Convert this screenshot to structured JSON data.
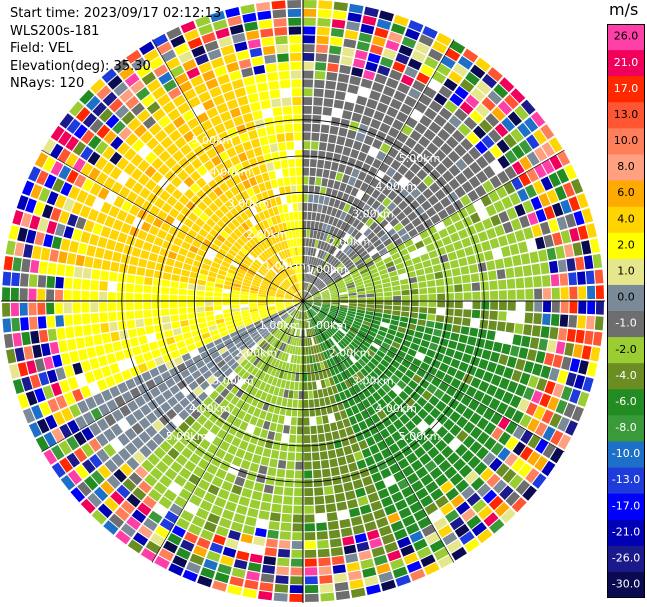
{
  "meta": {
    "start_time": "Start time: 2023/09/17 02:12:13",
    "device": "WLS200s-181",
    "field": "Field: VEL",
    "elevation": "Elevation(deg): 35.30",
    "nrays": "NRays: 120"
  },
  "chart_data": {
    "type": "heatmap",
    "projection": "polar-ppi",
    "field": "VEL",
    "units": "m/s",
    "n_rays": 120,
    "elevation_deg": 35.3,
    "max_range_km": 5.0,
    "range_rings_km": [
      1.0,
      2.0,
      3.0,
      4.0,
      5.0
    ],
    "range_ring_labels": [
      "1.00km",
      "2.00km",
      "3.00km",
      "4.00km",
      "5.00km"
    ],
    "colorbar": {
      "label": "m/s",
      "ticks": [
        "26.0",
        "21.0",
        "17.0",
        "13.0",
        "10.0",
        "8.0",
        "6.0",
        "4.0",
        "2.0",
        "1.0",
        "0.0",
        "-1.0",
        "-2.0",
        "-4.0",
        "-6.0",
        "-8.0",
        "-10.0",
        "-13.0",
        "-17.0",
        "-21.0",
        "-26.0",
        "-30.0"
      ],
      "colors": [
        "#ff3fa8",
        "#f0005a",
        "#ff2800",
        "#ff5533",
        "#ff7f5a",
        "#ffa080",
        "#ffaa00",
        "#ffd400",
        "#ffff00",
        "#e6e68c",
        "#7b8a99",
        "#6e6e6e",
        "#9acd32",
        "#6b8e23",
        "#228b22",
        "#3a9a3a",
        "#1e6fc8",
        "#1e3cdc",
        "#0000ff",
        "#0000b4",
        "#1a1a8c",
        "#0a0a50"
      ]
    },
    "sectors": [
      {
        "from_deg": 0,
        "to_deg": 60,
        "value": -1.0
      },
      {
        "from_deg": 60,
        "to_deg": 90,
        "value": -2.0
      },
      {
        "from_deg": 90,
        "to_deg": 180,
        "value": -4.0
      },
      {
        "from_deg": 100,
        "to_deg": 160,
        "value": -6.0
      },
      {
        "from_deg": 180,
        "to_deg": 225,
        "value": -2.0
      },
      {
        "from_deg": 225,
        "to_deg": 245,
        "value": 0.0
      },
      {
        "from_deg": 245,
        "to_deg": 360,
        "value": 2.0
      },
      {
        "from_deg": 280,
        "to_deg": 345,
        "value": 4.0
      }
    ],
    "noise_beyond_km": 4.0
  }
}
